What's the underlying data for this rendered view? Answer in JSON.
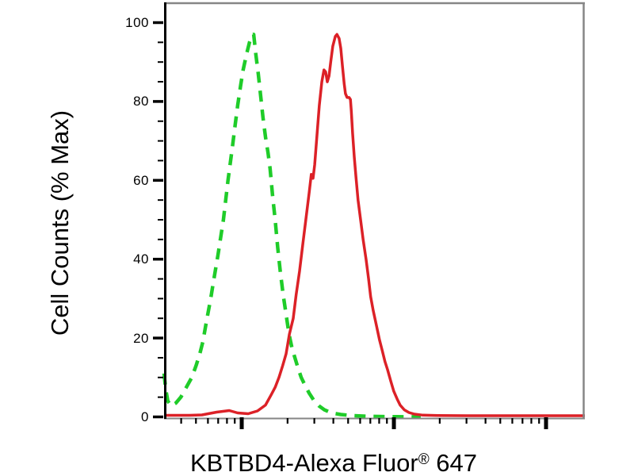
{
  "figure": {
    "background_color": "#ffffff",
    "plot_border_color": "#868686",
    "axis_color": "#000000"
  },
  "x_axis_label_parts": {
    "main": "KBTBD4-Alexa Fluor",
    "sup": "®",
    "tail": " 647"
  },
  "chart_data": {
    "type": "line",
    "subtype": "flow-cytometry-histogram",
    "title": "",
    "xlabel": "KBTBD4-Alexa Fluor® 647",
    "ylabel": "Cell Counts (% Max)",
    "x_scale": "log",
    "x_tick_labels_shown": false,
    "grid": false,
    "legend": "none",
    "ylim": [
      0,
      100
    ],
    "y_axis": {
      "major_tick_values": [
        0,
        20,
        40,
        60,
        80,
        100
      ],
      "major_tick_labels": [
        "0",
        "20",
        "40",
        "60",
        "80",
        "100"
      ],
      "minor_tick_step": 5
    },
    "x_axis": {
      "major_tick_positions": [
        0.1846,
        0.5462,
        0.9077
      ],
      "minor_tick_positions": [
        0.0407,
        0.0758,
        0.1043,
        0.1286,
        0.1495,
        0.168,
        0.2935,
        0.3571,
        0.4023,
        0.4374,
        0.466,
        0.4902,
        0.5112,
        0.5296,
        0.6551,
        0.7187,
        0.7639,
        0.799,
        0.8276,
        0.8518,
        0.8728,
        0.8912
      ]
    },
    "series": [
      {
        "id": "green-dashed",
        "name": "green-dashed-curve",
        "color": "#1fcc29",
        "style": "dashed",
        "dash": "14 10",
        "width": 4.5,
        "peak_percent": 97,
        "points": [
          [
            0.0,
            11
          ],
          [
            0.004,
            7
          ],
          [
            0.009,
            4
          ],
          [
            0.017,
            2.8
          ],
          [
            0.028,
            3.5
          ],
          [
            0.04,
            5
          ],
          [
            0.053,
            7.5
          ],
          [
            0.066,
            10
          ],
          [
            0.076,
            13
          ],
          [
            0.085,
            16
          ],
          [
            0.092,
            19
          ],
          [
            0.102,
            25
          ],
          [
            0.111,
            30
          ],
          [
            0.117,
            34
          ],
          [
            0.128,
            41
          ],
          [
            0.141,
            50
          ],
          [
            0.152,
            60
          ],
          [
            0.163,
            69
          ],
          [
            0.169,
            74
          ],
          [
            0.175,
            79
          ],
          [
            0.182,
            84
          ],
          [
            0.188,
            88
          ],
          [
            0.196,
            92
          ],
          [
            0.203,
            95
          ],
          [
            0.209,
            96.8
          ],
          [
            0.213,
            97
          ],
          [
            0.218,
            92
          ],
          [
            0.224,
            87
          ],
          [
            0.229,
            82
          ],
          [
            0.235,
            76
          ],
          [
            0.241,
            71
          ],
          [
            0.247,
            67
          ],
          [
            0.252,
            63
          ],
          [
            0.258,
            56
          ],
          [
            0.264,
            50
          ],
          [
            0.27,
            43
          ],
          [
            0.276,
            37
          ],
          [
            0.283,
            31
          ],
          [
            0.29,
            26
          ],
          [
            0.297,
            21
          ],
          [
            0.304,
            17.5
          ],
          [
            0.311,
            15
          ],
          [
            0.318,
            12.5
          ],
          [
            0.326,
            10
          ],
          [
            0.335,
            8
          ],
          [
            0.345,
            6
          ],
          [
            0.356,
            4.2
          ],
          [
            0.368,
            2.8
          ],
          [
            0.381,
            1.8
          ],
          [
            0.398,
            1.0
          ],
          [
            0.42,
            0.6
          ],
          [
            0.45,
            0.3
          ],
          [
            0.49,
            0.15
          ],
          [
            0.555,
            0.05
          ],
          [
            0.61,
            0
          ]
        ]
      },
      {
        "id": "red-solid",
        "name": "red-solid-curve",
        "color": "#dc2127",
        "style": "solid",
        "dash": "",
        "width": 3.5,
        "peak_percent": 97,
        "points": [
          [
            0.0,
            0.4
          ],
          [
            0.06,
            0.4
          ],
          [
            0.09,
            0.5
          ],
          [
            0.125,
            1.2
          ],
          [
            0.155,
            1.6
          ],
          [
            0.175,
            1.0
          ],
          [
            0.2,
            0.8
          ],
          [
            0.222,
            1.5
          ],
          [
            0.241,
            3
          ],
          [
            0.254,
            5.5
          ],
          [
            0.264,
            7.5
          ],
          [
            0.273,
            10
          ],
          [
            0.282,
            13
          ],
          [
            0.29,
            16
          ],
          [
            0.298,
            21
          ],
          [
            0.307,
            25
          ],
          [
            0.314,
            31
          ],
          [
            0.322,
            37
          ],
          [
            0.33,
            44
          ],
          [
            0.337,
            50
          ],
          [
            0.345,
            57
          ],
          [
            0.35,
            61.5
          ],
          [
            0.354,
            60.5
          ],
          [
            0.358,
            64
          ],
          [
            0.363,
            71
          ],
          [
            0.369,
            79
          ],
          [
            0.375,
            85
          ],
          [
            0.38,
            88
          ],
          [
            0.384,
            87.5
          ],
          [
            0.388,
            85
          ],
          [
            0.392,
            86.5
          ],
          [
            0.396,
            90
          ],
          [
            0.401,
            94
          ],
          [
            0.407,
            96.5
          ],
          [
            0.411,
            97
          ],
          [
            0.416,
            96
          ],
          [
            0.42,
            93.5
          ],
          [
            0.424,
            89
          ],
          [
            0.428,
            84.5
          ],
          [
            0.431,
            82
          ],
          [
            0.435,
            81
          ],
          [
            0.44,
            81
          ],
          [
            0.443,
            80.5
          ],
          [
            0.445,
            77.5
          ],
          [
            0.448,
            72
          ],
          [
            0.452,
            66
          ],
          [
            0.456,
            61
          ],
          [
            0.461,
            55
          ],
          [
            0.467,
            50
          ],
          [
            0.473,
            45
          ],
          [
            0.48,
            40
          ],
          [
            0.486,
            35
          ],
          [
            0.491,
            30.5
          ],
          [
            0.497,
            27
          ],
          [
            0.505,
            23
          ],
          [
            0.512,
            19.5
          ],
          [
            0.518,
            17
          ],
          [
            0.525,
            14
          ],
          [
            0.531,
            12
          ],
          [
            0.539,
            9
          ],
          [
            0.546,
            6.5
          ],
          [
            0.554,
            4.5
          ],
          [
            0.561,
            3
          ],
          [
            0.571,
            1.8
          ],
          [
            0.582,
            1.1
          ],
          [
            0.595,
            0.7
          ],
          [
            0.615,
            0.45
          ],
          [
            0.65,
            0.35
          ],
          [
            0.72,
            0.3
          ],
          [
            0.85,
            0.3
          ],
          [
            1.0,
            0.3
          ]
        ]
      }
    ]
  }
}
